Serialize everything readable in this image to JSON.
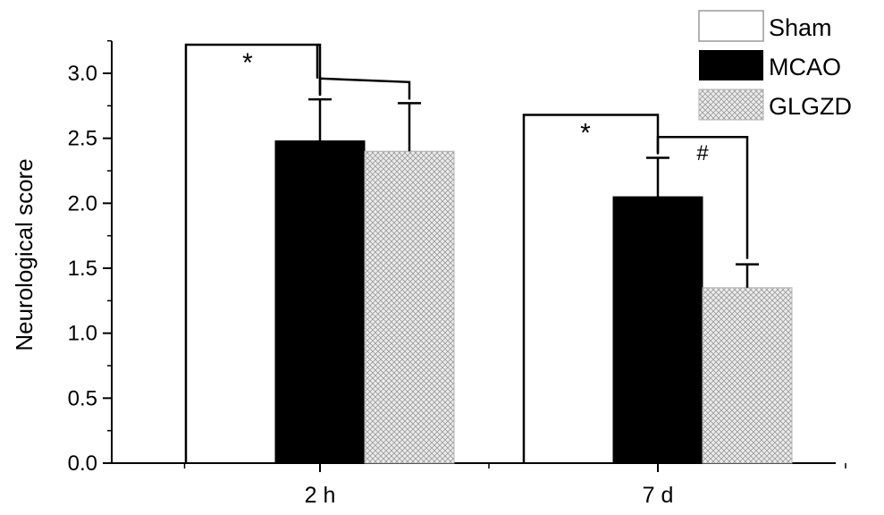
{
  "chart_data": {
    "type": "bar",
    "ylabel": "Neurological score",
    "ylim": [
      0,
      3.3
    ],
    "yticks": [
      "0.0",
      "0.5",
      "1.0",
      "1.5",
      "2.0",
      "2.5",
      "3.0"
    ],
    "categories": [
      "2 h",
      "7 d"
    ],
    "legend_position": "top-right",
    "series": [
      {
        "name": "Sham",
        "values": [
          0,
          0
        ],
        "errors": [
          0,
          0
        ],
        "fill": "#ffffff",
        "pattern": "none"
      },
      {
        "name": "MCAO",
        "values": [
          2.48,
          2.05
        ],
        "errors": [
          0.32,
          0.3
        ],
        "fill": "#000000",
        "pattern": "none"
      },
      {
        "name": "GLGZD",
        "values": [
          2.4,
          1.35
        ],
        "errors": [
          0.37,
          0.18
        ],
        "fill": "#e6e6e6",
        "pattern": "crosshatch"
      }
    ],
    "significance": [
      {
        "category": 0,
        "from_series": 0,
        "to_series": 1,
        "label": "*"
      },
      {
        "category": 1,
        "from_series": 0,
        "to_series": 1,
        "label": "*"
      },
      {
        "category": 1,
        "from_series": 1,
        "to_series": 2,
        "label": "#"
      }
    ]
  }
}
